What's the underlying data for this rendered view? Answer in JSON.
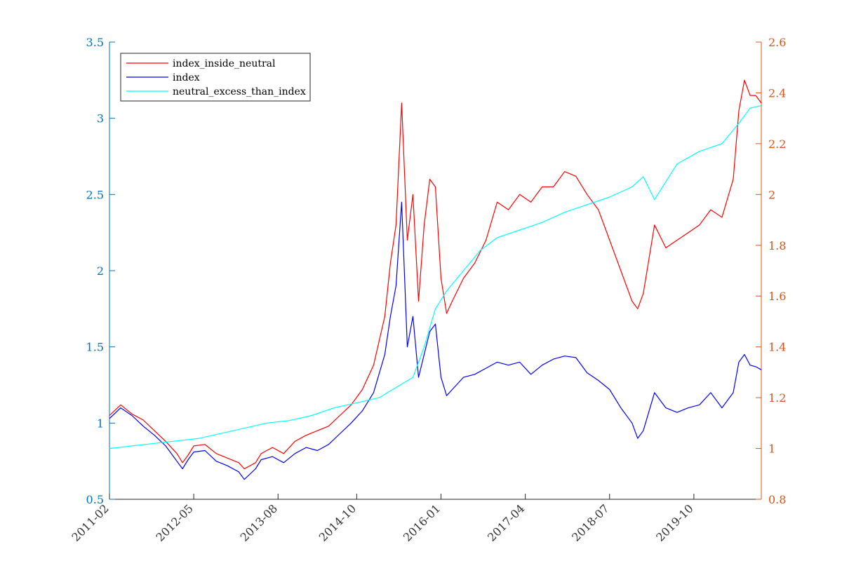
{
  "chart_data": {
    "type": "line",
    "title": "",
    "xlabel": "",
    "ylabel": "",
    "x_range": [
      "2011-02",
      "2020-10"
    ],
    "x_ticks": [
      "2011-02",
      "2012-05",
      "2013-08",
      "2014-10",
      "2016-01",
      "2017-04",
      "2018-07",
      "2019-10"
    ],
    "y_left": {
      "range": [
        0.5,
        3.5
      ],
      "ticks": [
        "0.5",
        "1",
        "1.5",
        "2",
        "2.5",
        "3",
        "3.5"
      ],
      "color": "#0072BD"
    },
    "y_right": {
      "range": [
        0.8,
        2.6
      ],
      "ticks": [
        "0.8",
        "1",
        "1.2",
        "1.4",
        "1.6",
        "1.8",
        "2",
        "2.2",
        "2.4",
        "2.6"
      ],
      "color": "#D95319"
    },
    "grid": false,
    "legend_position": "top-left",
    "series": [
      {
        "name": "index_inside_neutral",
        "axis": "left",
        "color": "#ff0000",
        "points": [
          [
            "2011-02",
            1.05
          ],
          [
            "2011-04",
            1.12
          ],
          [
            "2011-06",
            1.06
          ],
          [
            "2011-08",
            1.02
          ],
          [
            "2011-10",
            0.95
          ],
          [
            "2011-12",
            0.88
          ],
          [
            "2012-02",
            0.8
          ],
          [
            "2012-03",
            0.74
          ],
          [
            "2012-04",
            0.79
          ],
          [
            "2012-05",
            0.85
          ],
          [
            "2012-07",
            0.86
          ],
          [
            "2012-09",
            0.8
          ],
          [
            "2012-11",
            0.77
          ],
          [
            "2013-01",
            0.74
          ],
          [
            "2013-02",
            0.7
          ],
          [
            "2013-04",
            0.74
          ],
          [
            "2013-05",
            0.8
          ],
          [
            "2013-07",
            0.84
          ],
          [
            "2013-09",
            0.8
          ],
          [
            "2013-11",
            0.88
          ],
          [
            "2014-01",
            0.92
          ],
          [
            "2014-03",
            0.95
          ],
          [
            "2014-05",
            0.98
          ],
          [
            "2014-07",
            1.05
          ],
          [
            "2014-09",
            1.12
          ],
          [
            "2014-11",
            1.22
          ],
          [
            "2015-01",
            1.38
          ],
          [
            "2015-03",
            1.7
          ],
          [
            "2015-04",
            2.05
          ],
          [
            "2015-05",
            2.3
          ],
          [
            "2015-06",
            3.1
          ],
          [
            "2015-07",
            2.2
          ],
          [
            "2015-08",
            2.5
          ],
          [
            "2015-09",
            1.8
          ],
          [
            "2015-10",
            2.3
          ],
          [
            "2015-11",
            2.6
          ],
          [
            "2015-12",
            2.55
          ],
          [
            "2016-01",
            1.95
          ],
          [
            "2016-02",
            1.72
          ],
          [
            "2016-03",
            1.8
          ],
          [
            "2016-05",
            1.95
          ],
          [
            "2016-07",
            2.05
          ],
          [
            "2016-09",
            2.2
          ],
          [
            "2016-11",
            2.45
          ],
          [
            "2017-01",
            2.4
          ],
          [
            "2017-03",
            2.5
          ],
          [
            "2017-05",
            2.45
          ],
          [
            "2017-07",
            2.55
          ],
          [
            "2017-09",
            2.55
          ],
          [
            "2017-11",
            2.65
          ],
          [
            "2018-01",
            2.62
          ],
          [
            "2018-03",
            2.5
          ],
          [
            "2018-05",
            2.4
          ],
          [
            "2018-07",
            2.2
          ],
          [
            "2018-09",
            2.0
          ],
          [
            "2018-11",
            1.8
          ],
          [
            "2018-12",
            1.75
          ],
          [
            "2019-01",
            1.85
          ],
          [
            "2019-03",
            2.3
          ],
          [
            "2019-05",
            2.15
          ],
          [
            "2019-07",
            2.2
          ],
          [
            "2019-09",
            2.25
          ],
          [
            "2019-11",
            2.3
          ],
          [
            "2020-01",
            2.4
          ],
          [
            "2020-03",
            2.35
          ],
          [
            "2020-05",
            2.6
          ],
          [
            "2020-06",
            3.05
          ],
          [
            "2020-07",
            3.25
          ],
          [
            "2020-08",
            3.15
          ],
          [
            "2020-09",
            3.15
          ],
          [
            "2020-10",
            3.1
          ]
        ]
      },
      {
        "name": "index",
        "axis": "left",
        "color": "#0000ff",
        "points": [
          [
            "2011-02",
            1.03
          ],
          [
            "2011-04",
            1.1
          ],
          [
            "2011-06",
            1.05
          ],
          [
            "2011-08",
            0.98
          ],
          [
            "2011-10",
            0.92
          ],
          [
            "2011-12",
            0.85
          ],
          [
            "2012-02",
            0.75
          ],
          [
            "2012-03",
            0.7
          ],
          [
            "2012-04",
            0.76
          ],
          [
            "2012-05",
            0.81
          ],
          [
            "2012-07",
            0.82
          ],
          [
            "2012-09",
            0.75
          ],
          [
            "2012-11",
            0.72
          ],
          [
            "2013-01",
            0.68
          ],
          [
            "2013-02",
            0.63
          ],
          [
            "2013-04",
            0.7
          ],
          [
            "2013-05",
            0.76
          ],
          [
            "2013-07",
            0.78
          ],
          [
            "2013-09",
            0.74
          ],
          [
            "2013-11",
            0.8
          ],
          [
            "2014-01",
            0.84
          ],
          [
            "2014-03",
            0.82
          ],
          [
            "2014-05",
            0.86
          ],
          [
            "2014-07",
            0.93
          ],
          [
            "2014-09",
            1.0
          ],
          [
            "2014-11",
            1.08
          ],
          [
            "2015-01",
            1.2
          ],
          [
            "2015-03",
            1.45
          ],
          [
            "2015-04",
            1.7
          ],
          [
            "2015-05",
            1.9
          ],
          [
            "2015-06",
            2.45
          ],
          [
            "2015-07",
            1.5
          ],
          [
            "2015-08",
            1.7
          ],
          [
            "2015-09",
            1.3
          ],
          [
            "2015-10",
            1.45
          ],
          [
            "2015-11",
            1.6
          ],
          [
            "2015-12",
            1.65
          ],
          [
            "2016-01",
            1.3
          ],
          [
            "2016-02",
            1.18
          ],
          [
            "2016-03",
            1.22
          ],
          [
            "2016-05",
            1.3
          ],
          [
            "2016-07",
            1.32
          ],
          [
            "2016-09",
            1.36
          ],
          [
            "2016-11",
            1.4
          ],
          [
            "2017-01",
            1.38
          ],
          [
            "2017-03",
            1.4
          ],
          [
            "2017-05",
            1.32
          ],
          [
            "2017-07",
            1.38
          ],
          [
            "2017-09",
            1.42
          ],
          [
            "2017-11",
            1.44
          ],
          [
            "2018-01",
            1.43
          ],
          [
            "2018-03",
            1.33
          ],
          [
            "2018-05",
            1.28
          ],
          [
            "2018-07",
            1.22
          ],
          [
            "2018-09",
            1.1
          ],
          [
            "2018-11",
            1.0
          ],
          [
            "2018-12",
            0.9
          ],
          [
            "2019-01",
            0.95
          ],
          [
            "2019-03",
            1.2
          ],
          [
            "2019-05",
            1.1
          ],
          [
            "2019-07",
            1.07
          ],
          [
            "2019-09",
            1.1
          ],
          [
            "2019-11",
            1.12
          ],
          [
            "2020-01",
            1.2
          ],
          [
            "2020-03",
            1.1
          ],
          [
            "2020-05",
            1.2
          ],
          [
            "2020-06",
            1.4
          ],
          [
            "2020-07",
            1.45
          ],
          [
            "2020-08",
            1.38
          ],
          [
            "2020-09",
            1.37
          ],
          [
            "2020-10",
            1.35
          ]
        ]
      },
      {
        "name": "neutral_excess_than_index",
        "axis": "right",
        "color": "#00ffff",
        "points": [
          [
            "2011-02",
            1.0
          ],
          [
            "2011-06",
            1.01
          ],
          [
            "2011-10",
            1.02
          ],
          [
            "2012-02",
            1.03
          ],
          [
            "2012-06",
            1.04
          ],
          [
            "2012-10",
            1.06
          ],
          [
            "2013-02",
            1.08
          ],
          [
            "2013-06",
            1.1
          ],
          [
            "2013-10",
            1.11
          ],
          [
            "2014-02",
            1.13
          ],
          [
            "2014-06",
            1.16
          ],
          [
            "2014-10",
            1.18
          ],
          [
            "2015-02",
            1.2
          ],
          [
            "2015-05",
            1.24
          ],
          [
            "2015-08",
            1.28
          ],
          [
            "2015-10",
            1.4
          ],
          [
            "2015-12",
            1.55
          ],
          [
            "2016-02",
            1.62
          ],
          [
            "2016-05",
            1.7
          ],
          [
            "2016-08",
            1.78
          ],
          [
            "2016-11",
            1.83
          ],
          [
            "2017-03",
            1.86
          ],
          [
            "2017-07",
            1.89
          ],
          [
            "2017-11",
            1.93
          ],
          [
            "2018-03",
            1.96
          ],
          [
            "2018-07",
            1.99
          ],
          [
            "2018-11",
            2.03
          ],
          [
            "2019-01",
            2.07
          ],
          [
            "2019-03",
            1.98
          ],
          [
            "2019-07",
            2.12
          ],
          [
            "2019-11",
            2.17
          ],
          [
            "2020-03",
            2.2
          ],
          [
            "2020-06",
            2.28
          ],
          [
            "2020-08",
            2.34
          ],
          [
            "2020-10",
            2.35
          ]
        ]
      }
    ]
  }
}
